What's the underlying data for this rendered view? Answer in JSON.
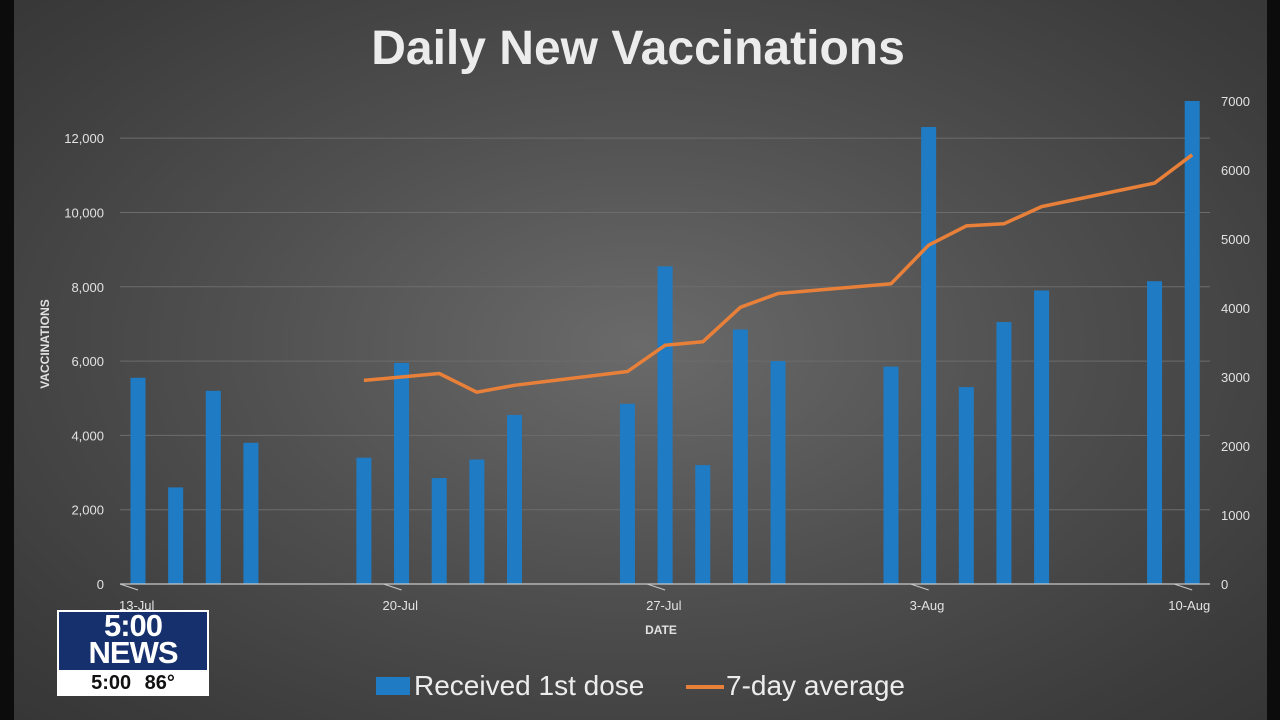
{
  "chart_data": {
    "type": "bar",
    "title": "Daily New Vaccinations",
    "xlabel": "DATE",
    "ylabel": "VACCINATIONS",
    "ylim": [
      0,
      13000
    ],
    "y2lim": [
      0,
      7000
    ],
    "y_ticks": [
      "0",
      "2,000",
      "4,000",
      "6,000",
      "8,000",
      "10,000",
      "12,000"
    ],
    "y_tick_values": [
      0,
      2000,
      4000,
      6000,
      8000,
      10000,
      12000
    ],
    "y2_ticks": [
      "0",
      "1000",
      "2000",
      "3000",
      "4000",
      "5000",
      "6000",
      "7000"
    ],
    "y2_tick_values": [
      0,
      1000,
      2000,
      3000,
      4000,
      5000,
      6000,
      7000
    ],
    "x_date_range": [
      "13-Jul",
      "10-Aug"
    ],
    "x_tick_labels": [
      {
        "label": "13-Jul",
        "day": 0
      },
      {
        "label": "20-Jul",
        "day": 7
      },
      {
        "label": "27-Jul",
        "day": 14
      },
      {
        "label": "3-Aug",
        "day": 21
      },
      {
        "label": "10-Aug",
        "day": 28
      }
    ],
    "grid": true,
    "legend_position": "bottom",
    "series": [
      {
        "name": "Received 1st dose",
        "type": "bar",
        "axis": "left",
        "color": "#1f7cc4",
        "x": [
          "13-Jul",
          "14-Jul",
          "15-Jul",
          "16-Jul",
          "19-Jul",
          "20-Jul",
          "21-Jul",
          "22-Jul",
          "23-Jul",
          "26-Jul",
          "27-Jul",
          "28-Jul",
          "29-Jul",
          "30-Jul",
          "2-Aug",
          "3-Aug",
          "4-Aug",
          "5-Aug",
          "6-Aug",
          "9-Aug",
          "10-Aug"
        ],
        "days": [
          0,
          1,
          2,
          3,
          6,
          7,
          8,
          9,
          10,
          13,
          14,
          15,
          16,
          17,
          20,
          21,
          22,
          23,
          24,
          27,
          28
        ],
        "values": [
          5550,
          2600,
          5200,
          3800,
          3400,
          5950,
          2850,
          3350,
          4550,
          4850,
          8550,
          3200,
          6850,
          6000,
          5850,
          12300,
          5300,
          7050,
          7900,
          8150,
          13000
        ]
      },
      {
        "name": "7-day average",
        "type": "line",
        "axis": "right",
        "color": "#e8803a",
        "x": [
          "19-Jul",
          "21-Jul",
          "22-Jul",
          "23-Jul",
          "26-Jul",
          "27-Jul",
          "28-Jul",
          "29-Jul",
          "30-Jul",
          "2-Aug",
          "3-Aug",
          "4-Aug",
          "5-Aug",
          "6-Aug",
          "9-Aug",
          "10-Aug"
        ],
        "days": [
          6,
          8,
          9,
          10,
          13,
          14,
          15,
          16,
          17,
          20,
          21,
          22,
          23,
          24,
          27,
          28
        ],
        "values": [
          2950,
          3050,
          2780,
          2880,
          3080,
          3460,
          3510,
          4010,
          4210,
          4350,
          4910,
          5190,
          5220,
          5470,
          5810,
          6220
        ]
      }
    ]
  },
  "news_bug": {
    "line1": "5:00",
    "line2": "NEWS",
    "time": "5:00",
    "temp": "86°"
  }
}
